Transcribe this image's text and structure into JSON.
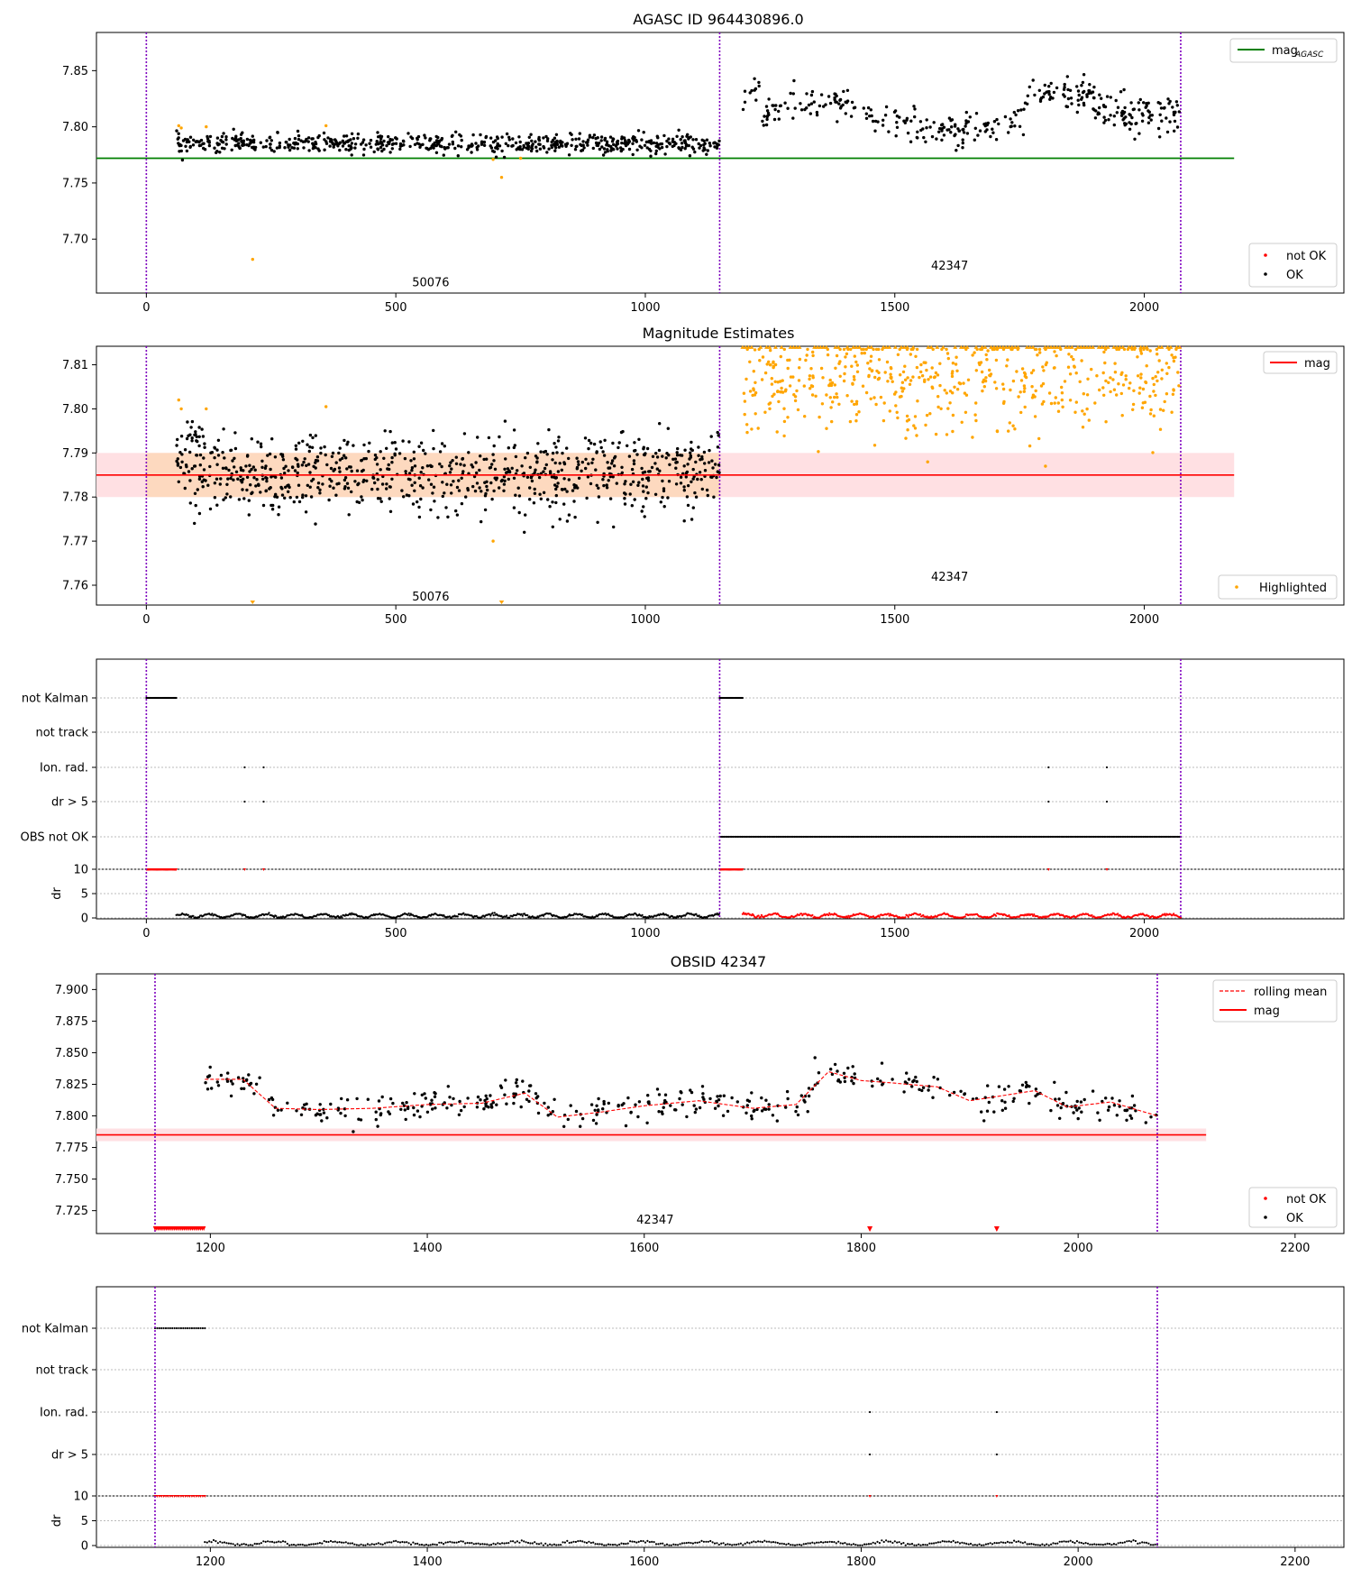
{
  "chart_data": [
    {
      "type": "scatter",
      "title": "AGASC ID 964430896.0",
      "xlabel": "",
      "ylabel": "",
      "xlim": [
        -100,
        2400
      ],
      "ylim": [
        7.652,
        7.884
      ],
      "xticks": [
        "0",
        "500",
        "1000",
        "1500",
        "2000"
      ],
      "yticks": [
        "7.70",
        "7.75",
        "7.80",
        "7.85"
      ],
      "obsid_boundaries": [
        0,
        1149,
        2073
      ],
      "obsid_labels": [
        {
          "text": "50076",
          "x": 570,
          "y": 7.662
        },
        {
          "text": "42347",
          "x": 1610,
          "y": 7.677
        }
      ],
      "reference_line": {
        "name": "mag_AGASC",
        "y": 7.772,
        "x": [
          0,
          2180
        ],
        "color": "#007f00"
      },
      "series": [
        {
          "name": "OK",
          "color": "#000000",
          "segments": [
            {
              "x_start": 60,
              "x_end": 1149,
              "n": 640,
              "mean": 7.785,
              "spread": 0.006
            },
            {
              "x_start": 1195,
              "x_end": 1760,
              "n": 200,
              "mean": 7.808,
              "spread": 0.01
            },
            {
              "x_start": 1760,
              "x_end": 2073,
              "n": 160,
              "mean": 7.817,
              "spread": 0.012
            }
          ]
        },
        {
          "name": "Highlighted outliers",
          "color": "#ffa500",
          "points": [
            [
              65,
              7.801
            ],
            [
              70,
              7.799
            ],
            [
              120,
              7.8
            ],
            [
              213,
              7.682
            ],
            [
              360,
              7.801
            ],
            [
              695,
              7.771
            ],
            [
              712,
              7.755
            ],
            [
              750,
              7.772
            ]
          ]
        }
      ],
      "legend": {
        "top-right": [
          "mag_AGASC"
        ],
        "bottom-right": [
          "not OK",
          "OK"
        ]
      }
    },
    {
      "type": "scatter",
      "title": "Magnitude Estimates",
      "xlabel": "",
      "ylabel": "",
      "xlim": [
        -100,
        2400
      ],
      "ylim": [
        7.7555,
        7.8142
      ],
      "xticks": [
        "0",
        "500",
        "1000",
        "1500",
        "2000"
      ],
      "yticks": [
        "7.76",
        "7.77",
        "7.78",
        "7.79",
        "7.80",
        "7.81"
      ],
      "obsid_boundaries": [
        0,
        1149,
        2073
      ],
      "obsid_labels": [
        {
          "text": "50076",
          "x": 570,
          "y": 7.7575
        },
        {
          "text": "42347",
          "x": 1610,
          "y": 7.762
        }
      ],
      "mag_line": {
        "name": "mag",
        "y": 7.785,
        "band": [
          7.78,
          7.79
        ],
        "color": "#ff0000"
      },
      "orange_band": {
        "x": [
          0,
          1149
        ],
        "y": [
          7.78,
          7.79
        ]
      },
      "series": [
        {
          "name": "OK",
          "color": "#000000",
          "segments": [
            {
              "x_start": 60,
              "x_end": 1149,
              "n": 820,
              "mean": 7.785,
              "spread": 0.0045
            }
          ]
        },
        {
          "name": "Highlighted",
          "color": "#ffa500",
          "segments": [
            {
              "x_start": 1195,
              "x_end": 2073,
              "n": 520,
              "mean": 7.806,
              "spread": 0.006
            }
          ]
        }
      ],
      "legend": {
        "top-right": [
          "mag"
        ],
        "bottom-right": [
          "Highlighted"
        ]
      }
    },
    {
      "type": "scatter",
      "title": "",
      "rows": [
        "not Kalman",
        "not track",
        "Ion. rad.",
        "dr > 5",
        "OBS not OK"
      ],
      "xlim": [
        -100,
        2400
      ],
      "xticks": [
        "0",
        "500",
        "1000",
        "1500",
        "2000"
      ],
      "flags": {
        "not Kalman": [
          [
            0,
            60
          ],
          [
            1149,
            1195
          ]
        ],
        "not track": [],
        "Ion. rad.": [
          197,
          235,
          1808,
          1925
        ],
        "dr > 5": [
          197,
          235,
          1808,
          1925
        ],
        "OBS not OK": [
          [
            1149,
            2073
          ]
        ]
      },
      "dr_axis": {
        "ylabel": "dr",
        "yticks": [
          "0",
          "5",
          "10"
        ],
        "ylim": [
          0,
          10
        ]
      }
    },
    {
      "type": "line",
      "title": "OBSID 42347",
      "xlabel": "",
      "ylabel": "",
      "xlim": [
        1095,
        2245
      ],
      "ylim": [
        7.7069,
        7.9124
      ],
      "xticks": [
        "1200",
        "1400",
        "1600",
        "1800",
        "2000",
        "2200"
      ],
      "yticks": [
        "7.725",
        "7.750",
        "7.775",
        "7.800",
        "7.825",
        "7.850",
        "7.875",
        "7.900"
      ],
      "obsid_boundaries": [
        1149,
        2073
      ],
      "obsid_label": "42347",
      "mag_line": {
        "name": "mag",
        "y": 7.785,
        "band": [
          7.78,
          7.79
        ],
        "color": "#ff0000"
      },
      "rolling_mean": {
        "name": "rolling mean",
        "x": [
          1195,
          1230,
          1260,
          1300,
          1350,
          1400,
          1450,
          1490,
          1520,
          1560,
          1600,
          1650,
          1700,
          1740,
          1770,
          1800,
          1830,
          1870,
          1900,
          1960,
          1990,
          2030,
          2073
        ],
        "y": [
          7.829,
          7.829,
          7.806,
          7.805,
          7.806,
          7.809,
          7.81,
          7.818,
          7.799,
          7.803,
          7.808,
          7.812,
          7.806,
          7.809,
          7.835,
          7.828,
          7.826,
          7.823,
          7.812,
          7.82,
          7.807,
          7.811,
          7.8
        ]
      },
      "series": [
        {
          "name": "OK",
          "color": "#000000",
          "n": 420
        },
        {
          "name": "not OK",
          "color": "#ff0000",
          "points_at_bottom": [
            [
              1149,
              1195
            ],
            [
              1808
            ],
            [
              1925
            ]
          ]
        }
      ],
      "legend": {
        "top-right": [
          "rolling mean",
          "mag"
        ],
        "bottom-right": [
          "not OK",
          "OK"
        ]
      }
    },
    {
      "type": "scatter",
      "title": "",
      "rows": [
        "not Kalman",
        "not track",
        "Ion. rad.",
        "dr > 5"
      ],
      "xlim": [
        1095,
        2245
      ],
      "xticks": [
        "1200",
        "1400",
        "1600",
        "1800",
        "2000",
        "2200"
      ],
      "flags": {
        "not Kalman": [
          [
            1149,
            1195
          ]
        ],
        "not track": [],
        "Ion. rad.": [
          1808,
          1925
        ],
        "dr > 5": [
          1808,
          1925
        ]
      },
      "dr_axis": {
        "ylabel": "dr",
        "yticks": [
          "0",
          "5",
          "10"
        ],
        "ylim": [
          0,
          10
        ]
      }
    }
  ],
  "legends": {
    "p1_mag_agasc": "mag",
    "p1_mag_agasc_sub": "AGASC",
    "not_ok": "not OK",
    "ok": "OK",
    "mag": "mag",
    "highlighted": "Highlighted",
    "rolling_mean": "rolling mean"
  },
  "colors": {
    "ok": "#000000",
    "not_ok": "#ff0000",
    "highlighted": "#ffa500",
    "agasc_line": "#007f00",
    "mag_line": "#ff0000",
    "mag_band": "#ffe0e3",
    "orange_band": "#fdd9bf",
    "obsid_boundary": "#7f00bf"
  }
}
